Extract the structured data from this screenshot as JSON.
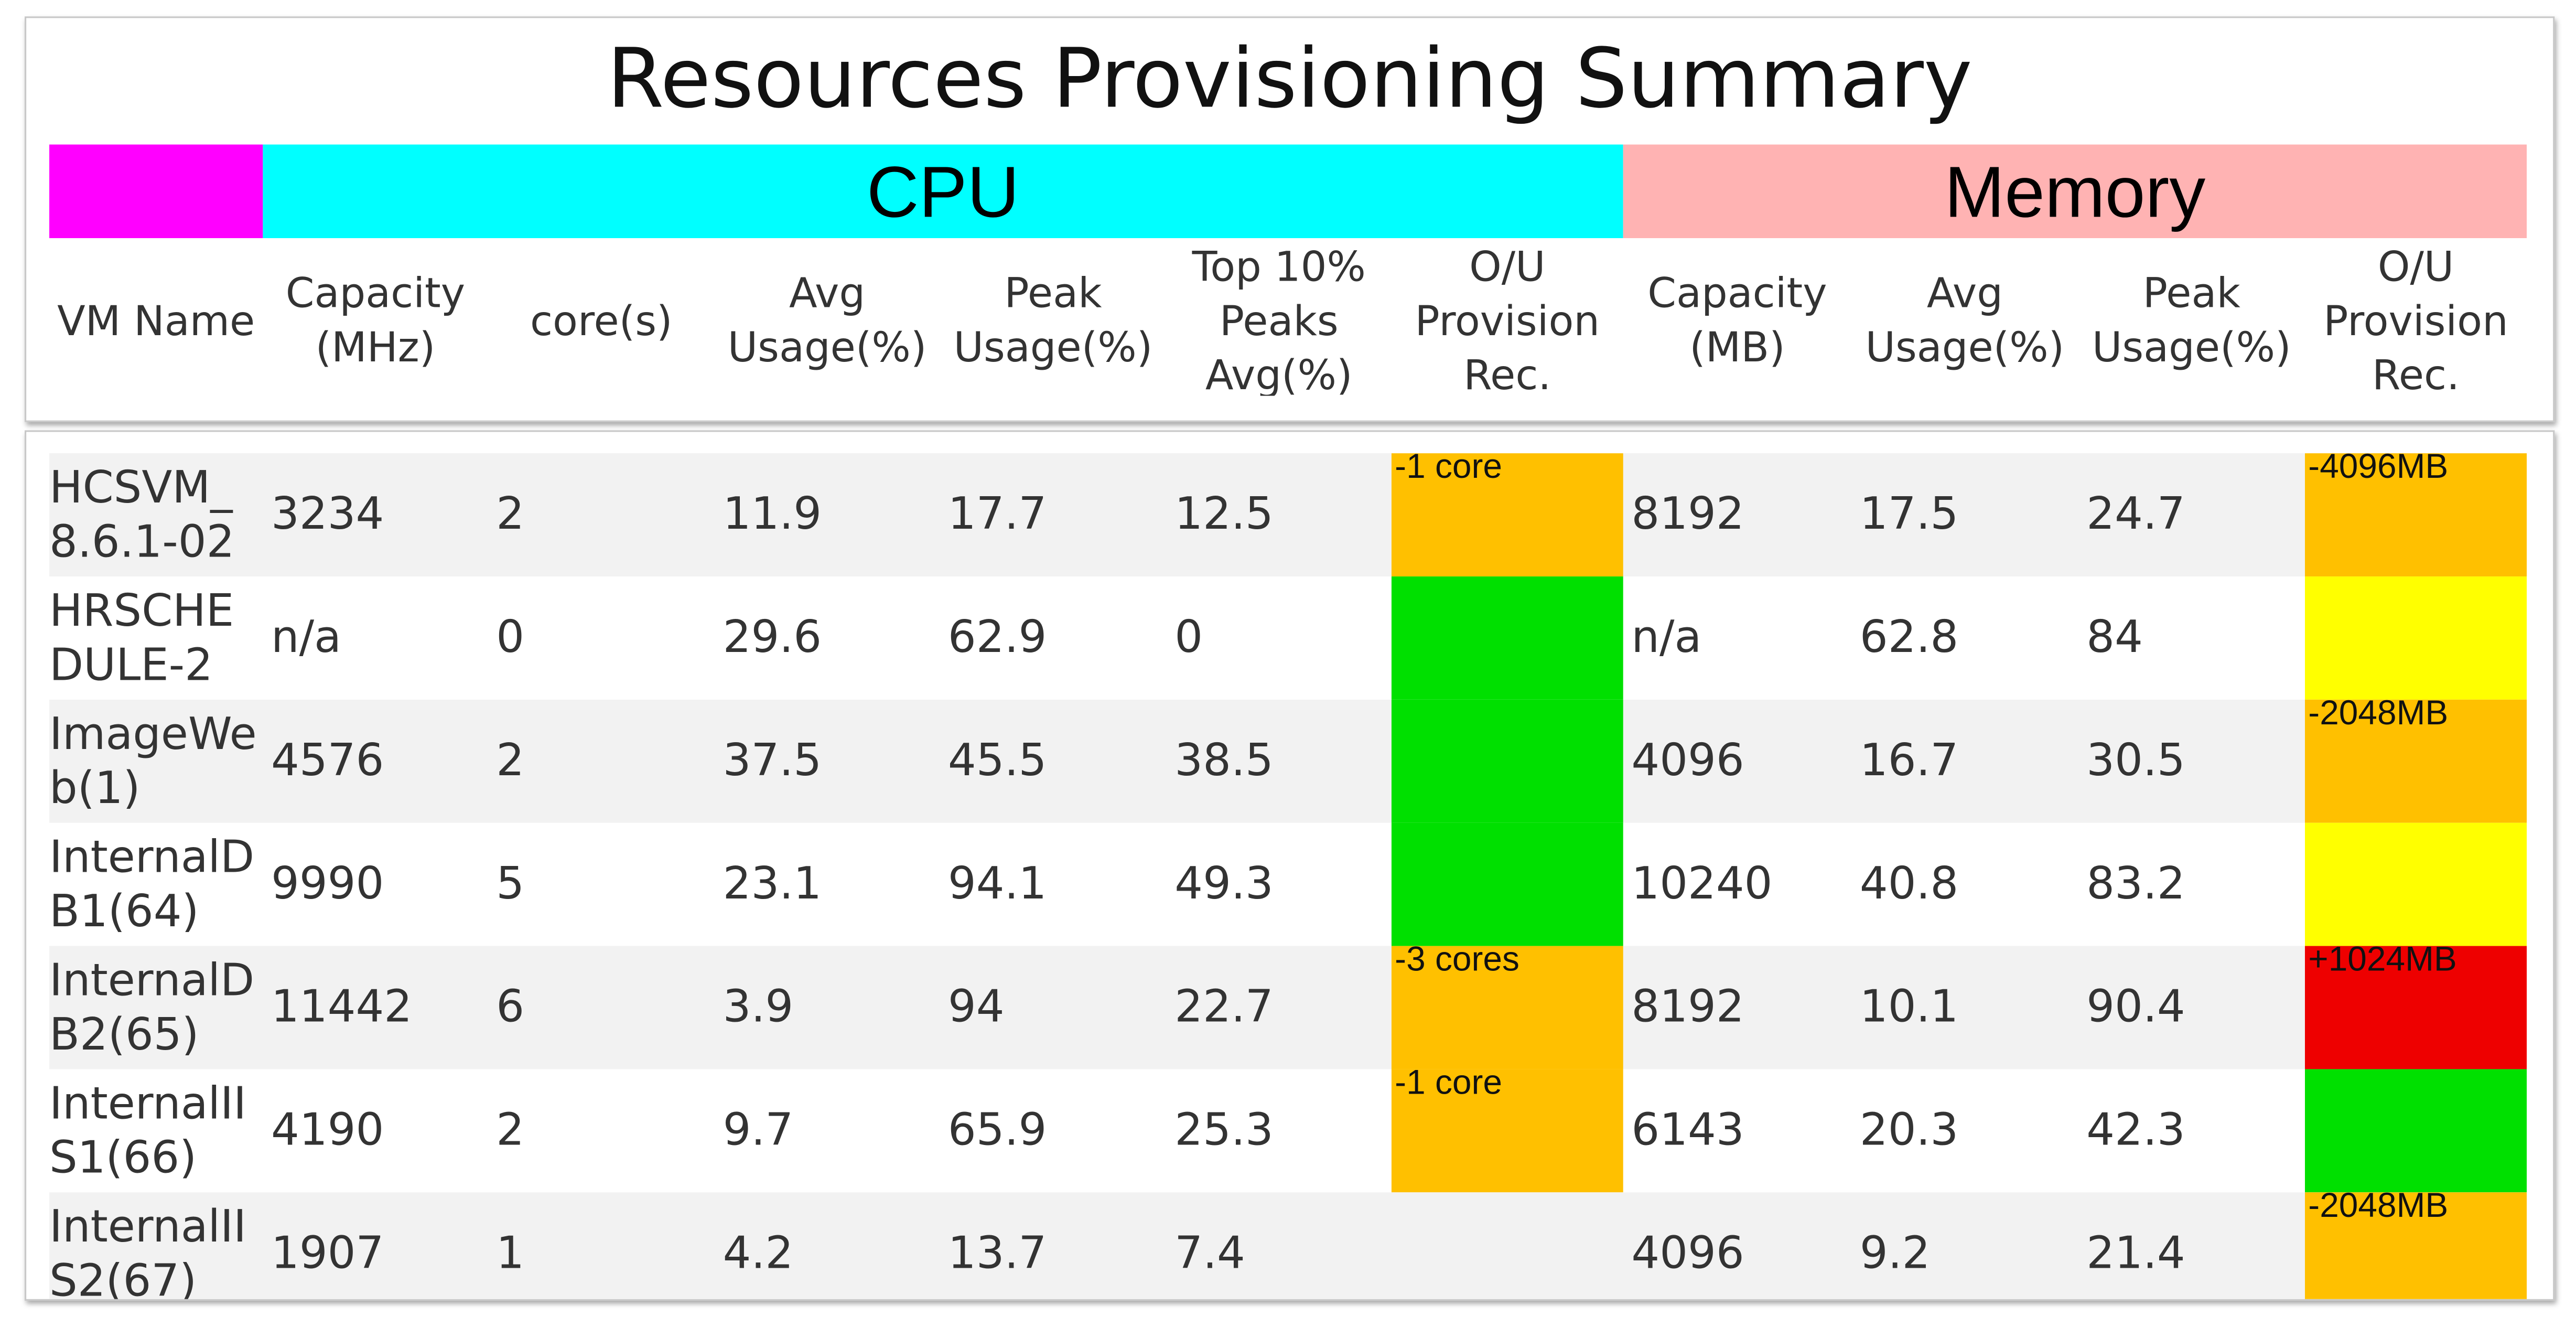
{
  "title": "Resources Provisioning Summary",
  "groups": [
    {
      "label": null,
      "color": "#ff00ff"
    },
    {
      "label": "CPU",
      "color": "#00ffff"
    },
    {
      "label": "Memory",
      "color": "#ffb3b3"
    }
  ],
  "columns": [
    "VM Name",
    "Capacity (MHz)",
    "core(s)",
    "Avg Usage(%)",
    "Peak Usage(%)",
    "Top 10% Peaks Avg(%)",
    "O/U Provision Rec.",
    "Capacity (MB)",
    "Avg Usage(%)",
    "Peak Usage(%)",
    "O/U Provision Rec."
  ],
  "rows": [
    [
      "HCSVM_8.6.1-02",
      3234,
      2,
      11.9,
      17.7,
      12.5,
      {
        "text": "-1 core",
        "color": "#ffc000"
      },
      8192,
      17.5,
      24.7,
      {
        "text": "-4096MB",
        "color": "#ffc000"
      }
    ],
    [
      "HRSCHEDULE-2",
      "n/a",
      0,
      29.6,
      62.9,
      0,
      {
        "color": "#00e000"
      },
      "n/a",
      62.8,
      84,
      {
        "color": "#ffff00"
      }
    ],
    [
      "ImageWeb(1)",
      4576,
      2,
      37.5,
      45.5,
      38.5,
      {
        "color": "#00e000"
      },
      4096,
      16.7,
      30.5,
      {
        "text": "-2048MB",
        "color": "#ffc000"
      }
    ],
    [
      "InternalDB1(64)",
      9990,
      5,
      23.1,
      94.1,
      49.3,
      {
        "color": "#00e000"
      },
      10240,
      40.8,
      83.2,
      {
        "color": "#ffff00"
      }
    ],
    [
      "InternalDB2(65)",
      11442,
      6,
      3.9,
      94,
      22.7,
      {
        "text": "-3 cores",
        "color": "#ffc000"
      },
      8192,
      10.1,
      90.4,
      {
        "text": "+1024MB",
        "color": "#ee0000"
      }
    ],
    [
      "InternalIIS1(66)",
      4190,
      2,
      9.7,
      65.9,
      25.3,
      {
        "text": "-1 core",
        "color": "#ffc000"
      },
      6143,
      20.3,
      42.3,
      {
        "color": "#00e000"
      }
    ],
    [
      "InternalIIS2(67)",
      1907,
      1,
      4.2,
      13.7,
      7.4,
      null,
      4096,
      9.2,
      21.4,
      {
        "text": "-2048MB",
        "color": "#ffc000"
      }
    ]
  ]
}
